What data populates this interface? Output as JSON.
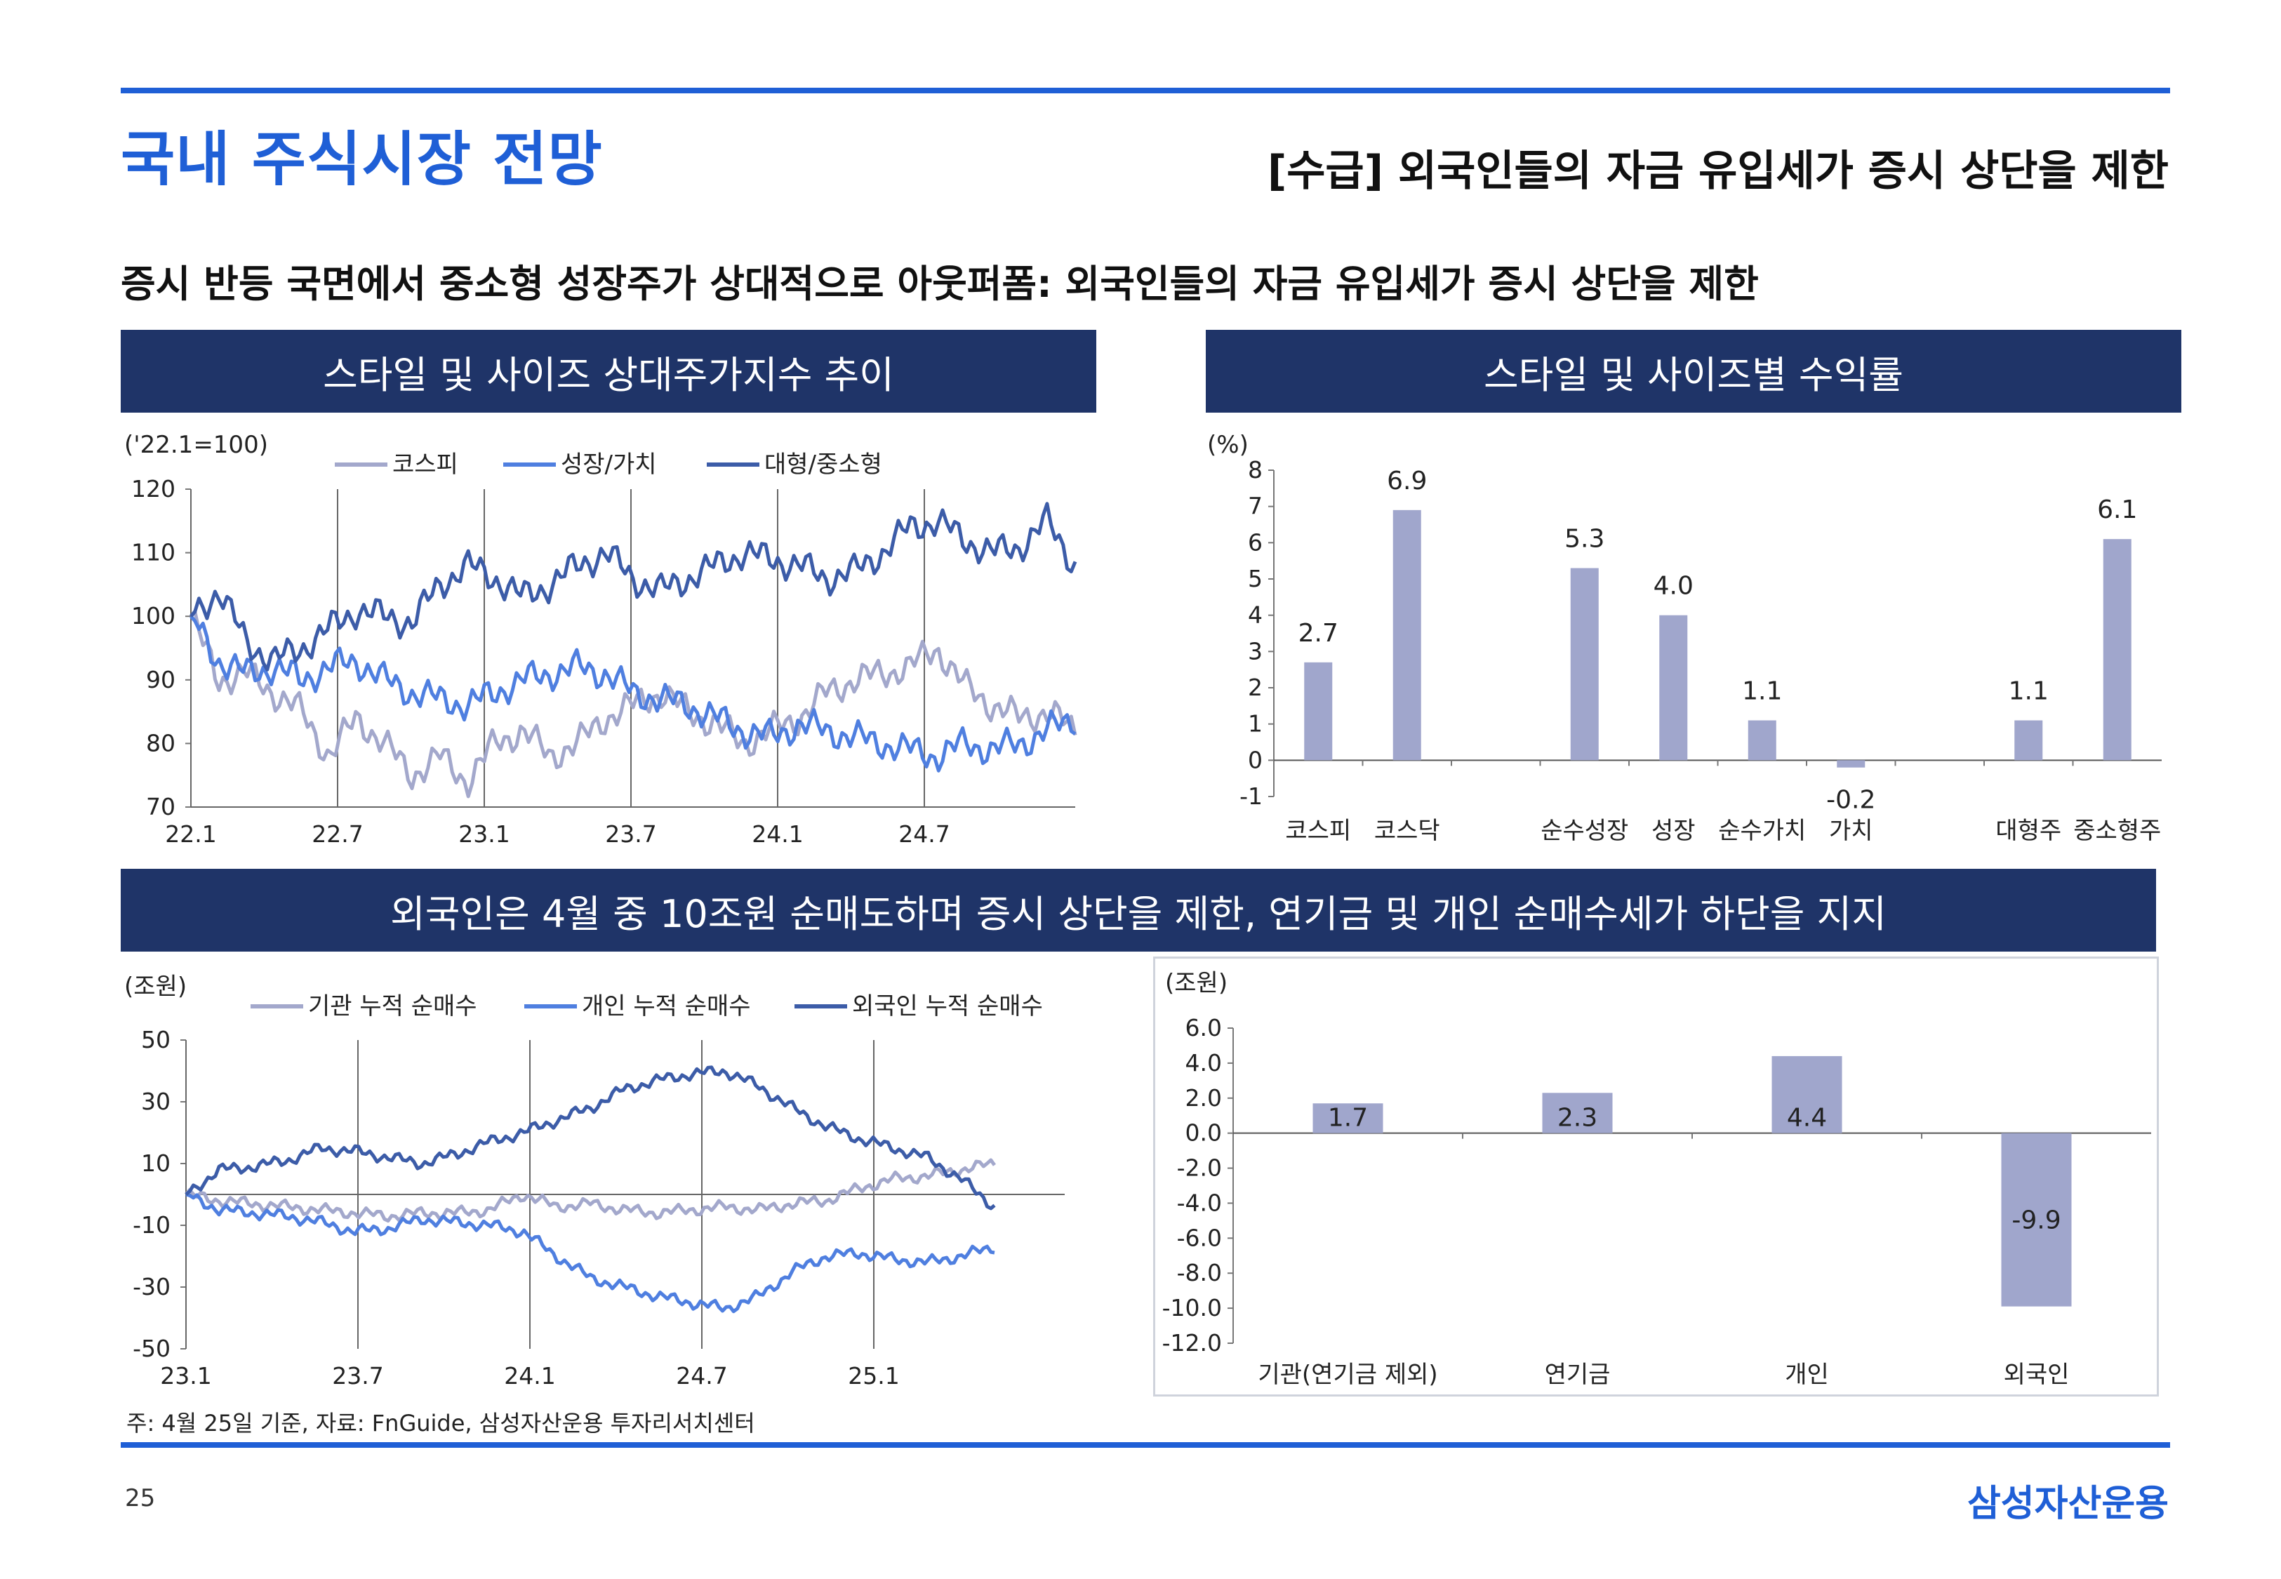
{
  "header": {
    "title": "국내 주식시장 전망",
    "subtitle": "[수급] 외국인들의 자금 유입세가 증시 상단을 제한"
  },
  "headline": "증시 반등 국면에서 중소형 성장주가 상대적으로 아웃퍼폼: 외국인들의 자금 유입세가 증시 상단을 제한",
  "banners": {
    "chart1": "스타일 및 사이즈 상대주가지수 추이",
    "chart2": "스타일 및 사이즈별 수익률",
    "lower": "외국인은 4월 중 10조원 순매도하며 증시 상단을 제한, 연기금 및 개인 순매수세가 하단을 지지"
  },
  "footer": {
    "note": "주: 4월 25일 기준, 자료: FnGuide, 삼성자산운용 투자리서치센터",
    "page": "25",
    "logo": "삼성자산운용"
  },
  "colors": {
    "brand": "#1f5fd6",
    "banner": "#1f3468",
    "series_light": "#a3a8cc",
    "series_mid": "#4f7fe0",
    "series_dark": "#3c5ca8",
    "bar": "#a0a6cc"
  },
  "chart_data": [
    {
      "type": "line",
      "unit_label": "('22.1=100)",
      "x_ticks": [
        "22.1",
        "22.7",
        "23.1",
        "23.7",
        "24.1",
        "24.7"
      ],
      "y_ticks": [
        "120",
        "110",
        "100",
        "90",
        "80",
        "70"
      ],
      "ylim": [
        70,
        120
      ],
      "series": [
        {
          "name": "코스피",
          "color": "#a3a8cc",
          "values": [
            100,
            90,
            91,
            88,
            85,
            78,
            84,
            80,
            75,
            78,
            74,
            80,
            82,
            78,
            80,
            84,
            86,
            88,
            85,
            83,
            80,
            82,
            84,
            88,
            90,
            91,
            92,
            95,
            89,
            86,
            84,
            85,
            82
          ]
        },
        {
          "name": "성장/가치",
          "color": "#4f7fe0",
          "values": [
            100,
            93,
            91,
            92,
            90,
            92,
            93,
            90,
            88,
            87,
            86,
            88,
            90,
            91,
            92,
            91,
            88,
            87,
            86,
            84,
            82,
            81,
            83,
            82,
            81,
            80,
            79,
            78,
            80,
            79,
            80,
            82,
            84
          ]
        },
        {
          "name": "대형/중소형",
          "color": "#3c5ca8",
          "values": [
            100,
            104,
            96,
            93,
            95,
            98,
            101,
            100,
            99,
            105,
            108,
            106,
            103,
            105,
            108,
            110,
            106,
            104,
            106,
            108,
            110,
            109,
            108,
            106,
            107,
            110,
            114,
            115,
            112,
            110,
            111,
            115,
            108
          ]
        }
      ]
    },
    {
      "type": "bar",
      "unit_label": "(%)",
      "y_ticks": [
        "8",
        "7",
        "6",
        "5",
        "4",
        "3",
        "2",
        "1",
        "0",
        "-1"
      ],
      "ylim": [
        -1,
        8
      ],
      "slots": [
        {
          "label": "코스피",
          "value": 2.7,
          "value_label": "2.7"
        },
        {
          "label": "코스닥",
          "value": 6.9,
          "value_label": "6.9"
        },
        {
          "label": "",
          "value": null,
          "value_label": ""
        },
        {
          "label": "순수성장",
          "value": 5.3,
          "value_label": "5.3"
        },
        {
          "label": "성장",
          "value": 4.0,
          "value_label": "4.0"
        },
        {
          "label": "순수가치",
          "value": 1.1,
          "value_label": "1.1"
        },
        {
          "label": "가치",
          "value": -0.2,
          "value_label": "-0.2"
        },
        {
          "label": "",
          "value": null,
          "value_label": ""
        },
        {
          "label": "대형주",
          "value": 1.1,
          "value_label": "1.1"
        },
        {
          "label": "중소형주",
          "value": 6.1,
          "value_label": "6.1"
        }
      ]
    },
    {
      "type": "line",
      "unit_label": "(조원)",
      "x_ticks": [
        "23.1",
        "23.7",
        "24.1",
        "24.7",
        "25.1"
      ],
      "y_ticks": [
        "50",
        "30",
        "10",
        "-10",
        "-30",
        "-50"
      ],
      "ylim": [
        -50,
        50
      ],
      "series": [
        {
          "name": "기관 누적 순매수",
          "color": "#a3a8cc",
          "values": [
            0,
            -2,
            -3,
            -4,
            -5,
            -6,
            -7,
            -6,
            -6,
            -5,
            0,
            -4,
            -3,
            -5,
            -6,
            -5,
            -4,
            -5,
            -3,
            -2,
            2,
            5,
            6,
            8,
            10
          ]
        },
        {
          "name": "개인 누적 순매수",
          "color": "#4f7fe0",
          "values": [
            0,
            -5,
            -6,
            -7,
            -9,
            -12,
            -11,
            -8,
            -9,
            -10,
            -12,
            -20,
            -27,
            -30,
            -33,
            -35,
            -37,
            -33,
            -25,
            -20,
            -19,
            -21,
            -22,
            -20,
            -17
          ]
        },
        {
          "name": "외국인 누적 순매수",
          "color": "#3c5ca8",
          "values": [
            0,
            8,
            9,
            11,
            15,
            14,
            12,
            10,
            13,
            17,
            20,
            24,
            28,
            34,
            37,
            39,
            40,
            35,
            28,
            22,
            18,
            15,
            12,
            5,
            -4
          ]
        }
      ]
    },
    {
      "type": "bar",
      "unit_label": "(조원)",
      "y_ticks": [
        "6.0",
        "4.0",
        "2.0",
        "0.0",
        "-2.0",
        "-4.0",
        "-6.0",
        "-8.0",
        "-10.0",
        "-12.0"
      ],
      "ylim": [
        -12,
        6
      ],
      "slots": [
        {
          "label": "기관(연기금 제외)",
          "value": 1.7,
          "value_label": "1.7"
        },
        {
          "label": "연기금",
          "value": 2.3,
          "value_label": "2.3"
        },
        {
          "label": "개인",
          "value": 4.4,
          "value_label": "4.4"
        },
        {
          "label": "외국인",
          "value": -9.9,
          "value_label": "-9.9"
        }
      ]
    }
  ]
}
